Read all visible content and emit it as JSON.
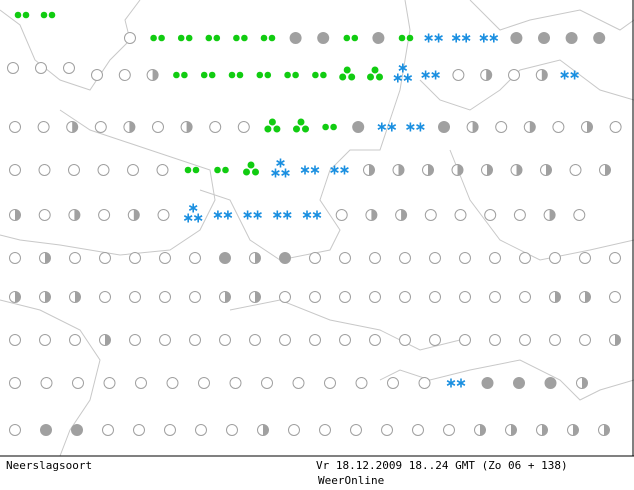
{
  "legend_title": "Neerslagsoort",
  "timestamp": "Vr 18.12.2009 18..24 GMT (Zo 06 + 138)",
  "source": "WeerOnline"
}
